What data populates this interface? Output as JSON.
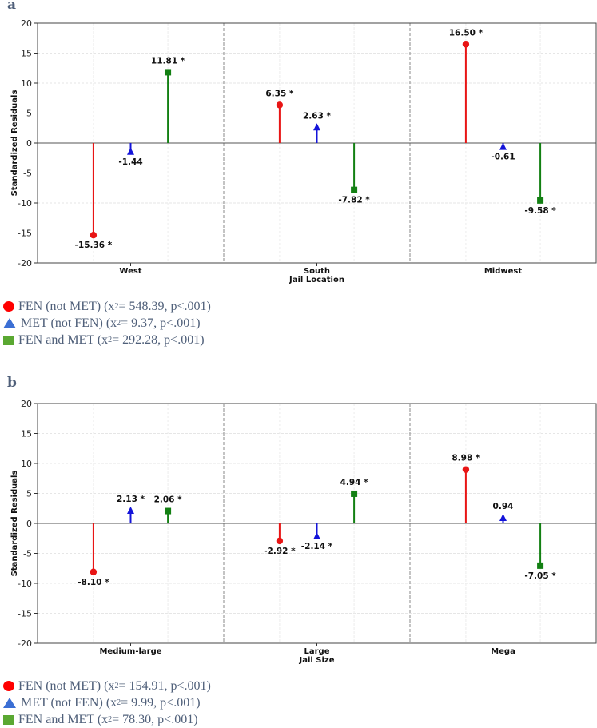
{
  "panel_a_letter": "a",
  "panel_b_letter": "b",
  "colors": {
    "fen": "#e81515",
    "met": "#1414d9",
    "both": "#138013",
    "legend_fen": "#ff0000",
    "legend_met": "#3b6fd4",
    "legend_both": "#5aa832",
    "legend_text": "#50607a"
  },
  "chart_data": [
    {
      "type": "stem",
      "panel": "a",
      "ylabel": "Standardized Residuals",
      "xlabel": "Jail Location",
      "ylim": [
        -20,
        20
      ],
      "yticks": [
        -20,
        -15,
        -10,
        -5,
        0,
        5,
        10,
        15,
        20
      ],
      "categories": [
        "West",
        "South",
        "Midwest"
      ],
      "series": [
        {
          "name": "FEN (not MET)",
          "marker": "circle",
          "values": [
            -15.36,
            6.35,
            16.5
          ],
          "labels": [
            "-15.36 *",
            "6.35 *",
            "16.50 *"
          ]
        },
        {
          "name": "MET (not FEN)",
          "marker": "triangle",
          "values": [
            -1.44,
            2.63,
            -0.61
          ],
          "labels": [
            "-1.44",
            "2.63 *",
            "-0.61"
          ]
        },
        {
          "name": "FEN and MET",
          "marker": "square",
          "values": [
            11.81,
            -7.82,
            -9.58
          ],
          "labels": [
            "11.81 *",
            "-7.82 *",
            "-9.58 *"
          ]
        }
      ],
      "legend": [
        {
          "label": "FEN (not MET) (x",
          "sup": "2",
          "stat": " = 548.39, p<.001)"
        },
        {
          "label": "MET (not FEN) (x",
          "sup": "2",
          "stat": " = 9.37, p<.001)"
        },
        {
          "label": "FEN and MET (x",
          "sup": "2",
          "stat": " = 292.28, p<.001)"
        }
      ]
    },
    {
      "type": "stem",
      "panel": "b",
      "ylabel": "Standardized Residuals",
      "xlabel": "Jail Size",
      "ylim": [
        -20,
        20
      ],
      "yticks": [
        -20,
        -15,
        -10,
        -5,
        0,
        5,
        10,
        15,
        20
      ],
      "categories": [
        "Medium-large",
        "Large",
        "Mega"
      ],
      "series": [
        {
          "name": "FEN (not MET)",
          "marker": "circle",
          "values": [
            -8.1,
            -2.92,
            8.98
          ],
          "labels": [
            "-8.10 *",
            "-2.92 *",
            "8.98 *"
          ]
        },
        {
          "name": "MET (not FEN)",
          "marker": "triangle",
          "values": [
            2.13,
            -2.14,
            0.94
          ],
          "labels": [
            "2.13 *",
            "-2.14 *",
            "0.94"
          ]
        },
        {
          "name": "FEN and MET",
          "marker": "square",
          "values": [
            2.06,
            4.94,
            -7.05
          ],
          "labels": [
            "2.06 *",
            "4.94 *",
            "-7.05 *"
          ]
        }
      ],
      "legend": [
        {
          "label": "FEN (not MET) (x",
          "sup": "2",
          "stat": " = 154.91, p<.001)"
        },
        {
          "label": "MET (not FEN) (x",
          "sup": "2",
          "stat": " = 9.99, p<.001)"
        },
        {
          "label": "FEN and MET (x",
          "sup": "2",
          "stat": " = 78.30, p<.001)"
        }
      ]
    }
  ]
}
